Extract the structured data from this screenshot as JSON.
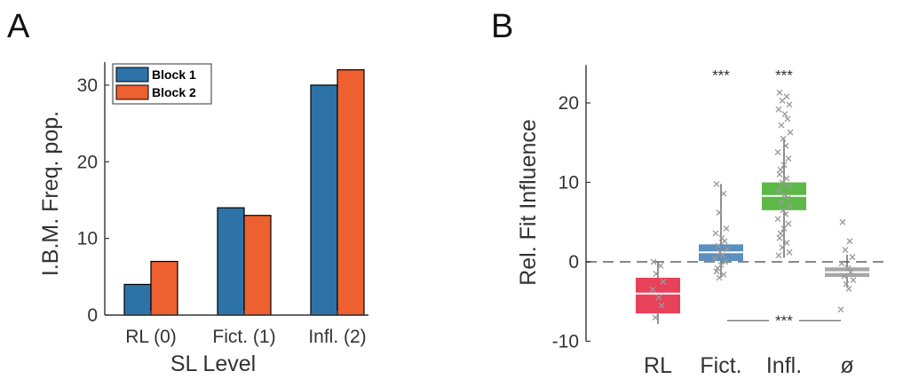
{
  "panels": {
    "a": "A",
    "b": "B"
  },
  "colors": {
    "block1": "#2E73A7",
    "block2": "#EE6030",
    "rl": "#E8425A",
    "fict": "#5B8FC0",
    "infl": "#5CB947",
    "null": "#A6A6A6",
    "points": "#999999"
  },
  "chart_data": [
    {
      "type": "bar",
      "panel": "A",
      "categories": [
        "RL (0)",
        "Fict. (1)",
        "Infl. (2)"
      ],
      "series": [
        {
          "name": "Block 1",
          "values": [
            4,
            14,
            30
          ]
        },
        {
          "name": "Block 2",
          "values": [
            7,
            13,
            32
          ]
        }
      ],
      "xlabel": "SL Level",
      "ylabel": "I.B.M. Freq. pop.",
      "ylim": [
        0,
        33
      ],
      "yticks": [
        0,
        10,
        20,
        30
      ],
      "legend": "top-left",
      "grid": false
    },
    {
      "type": "box",
      "panel": "B",
      "categories": [
        "RL",
        "Fict.",
        "Infl.",
        "ø"
      ],
      "ylabel": "Rel. Fit Influence",
      "ylim": [
        -10,
        25
      ],
      "yticks": [
        20,
        10,
        0,
        -10
      ],
      "reference_line": 0,
      "grid": false,
      "boxes": [
        {
          "category": "RL",
          "median": -4,
          "q1": -6.5,
          "q3": -2,
          "whisker_low": -7.8,
          "whisker_high": 0,
          "points": [
            0,
            -0.5,
            -1.5,
            -2.5,
            -3.5,
            -4.5,
            -5.5,
            -7
          ]
        },
        {
          "category": "Fict.",
          "median": 1.2,
          "q1": 0.1,
          "q3": 2.2,
          "whisker_low": -2,
          "whisker_high": 9.8,
          "points": [
            9.8,
            8.6,
            6.2,
            4.2,
            3.6,
            3,
            2.6,
            2,
            1.6,
            1.2,
            0.8,
            0.4,
            0,
            -0.4,
            -0.8,
            -1.2,
            -1.6,
            -2
          ]
        },
        {
          "category": "Infl.",
          "median": 8.3,
          "q1": 6.5,
          "q3": 10,
          "whisker_low": 0.5,
          "whisker_high": 15.5,
          "points": [
            21.3,
            20.8,
            20.3,
            19.8,
            19.2,
            18.6,
            18,
            17.2,
            16.3,
            15.5,
            14.6,
            13.8,
            13,
            12.2,
            11.6,
            11,
            10.5,
            10,
            9.5,
            9,
            8.5,
            8,
            7.5,
            7,
            6.5,
            6,
            5.4,
            4.8,
            4.2,
            3.6,
            3,
            2.4,
            1.8,
            1.2,
            0.8
          ]
        },
        {
          "category": "ø",
          "median": -1.3,
          "q1": -1.9,
          "q3": -0.7,
          "whisker_low": -3.2,
          "whisker_high": 0.9,
          "points": [
            5,
            2.6,
            1.5,
            0.6,
            -0.2,
            -0.8,
            -1.3,
            -1.8,
            -2.3,
            -2.8,
            -3.4,
            -6
          ]
        }
      ],
      "significance": [
        {
          "category": "Fict.",
          "label": "***",
          "y": 23.5
        },
        {
          "category": "Infl.",
          "label": "***",
          "y": 23.5
        },
        {
          "from": "Fict.",
          "to": "ø",
          "label": "***",
          "y": -7.4
        }
      ]
    }
  ]
}
